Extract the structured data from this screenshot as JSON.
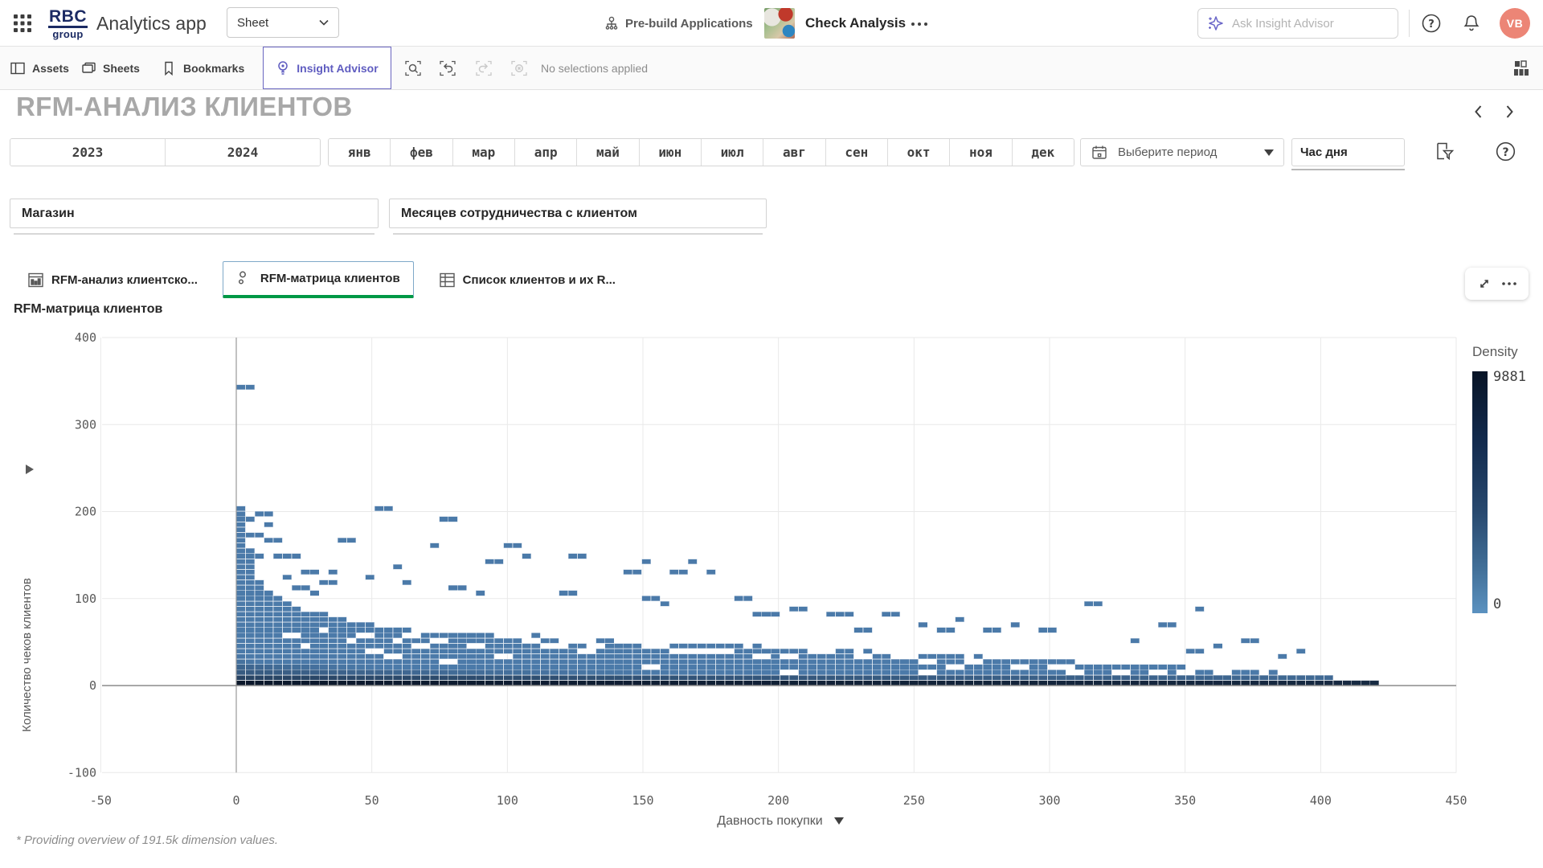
{
  "topbar": {
    "logo_line1": "RBC",
    "logo_line2": "group",
    "app_title": "Analytics app",
    "sheet_selector": "Sheet",
    "prebuild_label": "Pre-build Applications",
    "app_name": "Check Analysis",
    "search_placeholder": "Ask Insight Advisor",
    "avatar_initials": "VB"
  },
  "toolbar": {
    "assets": "Assets",
    "sheets": "Sheets",
    "bookmarks": "Bookmarks",
    "insight_advisor": "Insight Advisor",
    "selections_status": "No selections applied"
  },
  "sheet": {
    "title": "RFM-АНАЛИЗ КЛИЕНТОВ"
  },
  "filters": {
    "years": [
      "2023",
      "2024"
    ],
    "months": [
      "янв",
      "фев",
      "мар",
      "апр",
      "май",
      "июн",
      "июл",
      "авг",
      "сен",
      "окт",
      "ноя",
      "дек"
    ],
    "period_placeholder": "Выберите период",
    "hour_filter": "Час дня",
    "listboxes": [
      "Магазин",
      "Месяцев сотрудничества с клиентом"
    ]
  },
  "tabs": [
    {
      "label": "RFM-анализ клиентско...",
      "icon": "pivot-table-icon",
      "active": false
    },
    {
      "label": "RFM-матрица клиентов",
      "icon": "scatter-icon",
      "active": true
    },
    {
      "label": "Список клиентов и их R...",
      "icon": "table-icon",
      "active": false
    }
  ],
  "chart": {
    "title": "RFM-матрица клиентов",
    "footnote": "* Providing overview of 191.5k dimension values."
  },
  "chart_data": {
    "type": "heatmap",
    "title": "RFM-матрица клиентов",
    "xlabel": "Давность покупки",
    "ylabel": "Количество чеков клиентов",
    "x_ticks": [
      -50,
      0,
      50,
      100,
      150,
      200,
      250,
      300,
      350,
      400,
      450
    ],
    "y_ticks": [
      400,
      300,
      200,
      100,
      0,
      -100
    ],
    "xlim": [
      -50,
      450
    ],
    "ylim": [
      -100,
      400
    ],
    "grid": true,
    "legend": {
      "title": "Density",
      "max": 9881,
      "min": 0,
      "position": "right"
    },
    "colors": {
      "cell_base": "#4b7aa9",
      "cell_dark": "#071122",
      "grid": "#e9e9e9",
      "axis": "#8c8c8c"
    },
    "bin": {
      "x": 3.4,
      "y": 6.07
    },
    "column_tops": [
      205,
      158,
      121,
      109,
      103,
      97,
      91,
      88,
      85,
      82,
      79,
      76,
      74,
      72,
      70,
      68,
      67,
      66,
      64,
      63,
      62,
      61,
      60,
      61,
      59,
      58,
      60,
      58,
      57,
      58,
      57,
      56,
      58,
      56,
      55,
      54,
      56,
      55,
      53,
      54,
      52,
      53,
      51,
      52,
      50,
      51,
      49,
      50,
      48,
      49,
      48,
      47,
      48,
      46,
      47,
      45,
      46,
      44,
      45,
      43,
      44,
      42,
      43,
      41,
      42,
      40,
      41,
      39,
      40,
      38,
      39,
      37,
      38,
      36,
      37,
      35,
      36,
      34,
      35,
      33,
      34,
      32,
      33,
      31,
      32,
      30,
      31,
      29,
      30,
      28,
      29,
      27,
      28,
      26,
      27,
      25,
      26,
      24,
      25,
      23,
      24,
      22,
      23,
      21,
      20,
      21,
      19,
      18,
      19,
      17,
      16,
      15,
      16,
      14,
      13,
      12,
      13,
      11,
      10,
      9,
      8,
      8,
      7,
      7
    ],
    "floaters": [
      [
        0,
        340,
        2
      ],
      [
        7,
        196,
        2
      ],
      [
        0,
        186,
        2
      ],
      [
        10,
        182,
        1
      ],
      [
        0,
        174,
        1
      ],
      [
        3,
        168,
        2
      ],
      [
        10,
        165,
        2
      ],
      [
        0,
        157,
        1
      ],
      [
        3,
        152,
        1
      ],
      [
        7,
        148,
        1
      ],
      [
        12,
        143,
        3
      ],
      [
        24,
        130,
        2
      ],
      [
        17,
        124,
        1
      ],
      [
        31,
        118,
        2
      ],
      [
        20,
        112,
        2
      ],
      [
        27,
        106,
        1
      ],
      [
        37,
        162,
        2
      ],
      [
        34,
        128,
        1
      ],
      [
        51,
        200,
        2
      ],
      [
        48,
        124,
        1
      ],
      [
        58,
        131,
        1
      ],
      [
        61,
        118,
        1
      ],
      [
        75,
        188,
        2
      ],
      [
        72,
        160,
        1
      ],
      [
        78,
        112,
        2
      ],
      [
        92,
        141,
        2
      ],
      [
        99,
        160,
        2
      ],
      [
        88,
        106,
        1
      ],
      [
        105,
        148,
        1
      ],
      [
        122,
        145,
        2
      ],
      [
        119,
        106,
        2
      ],
      [
        143,
        126,
        2
      ],
      [
        150,
        141,
        1
      ],
      [
        160,
        129,
        2
      ],
      [
        167,
        142,
        1
      ],
      [
        173,
        130,
        1
      ],
      [
        150,
        100,
        2
      ],
      [
        156,
        94,
        1
      ],
      [
        185,
        95,
        2
      ],
      [
        190,
        80,
        3
      ],
      [
        205,
        88,
        2
      ],
      [
        218,
        80,
        3
      ],
      [
        228,
        62,
        2
      ],
      [
        238,
        80,
        2
      ],
      [
        250,
        66,
        1
      ],
      [
        258,
        60,
        2
      ],
      [
        265,
        72,
        1
      ],
      [
        275,
        58,
        2
      ],
      [
        285,
        66,
        1
      ],
      [
        296,
        60,
        2
      ],
      [
        313,
        94,
        2
      ],
      [
        330,
        50,
        1
      ],
      [
        340,
        68,
        2
      ],
      [
        352,
        86,
        1
      ],
      [
        350,
        36,
        2
      ],
      [
        362,
        44,
        1
      ],
      [
        372,
        50,
        2
      ],
      [
        385,
        30,
        1
      ],
      [
        392,
        36,
        1
      ]
    ],
    "holes": [
      [
        17,
        56,
        2
      ],
      [
        24,
        44,
        1
      ],
      [
        30,
        62,
        1
      ],
      [
        40,
        50,
        1
      ],
      [
        44,
        56,
        2
      ],
      [
        48,
        37,
        2
      ],
      [
        58,
        50,
        1
      ],
      [
        60,
        56,
        2
      ],
      [
        65,
        44,
        2
      ],
      [
        72,
        50,
        2
      ],
      [
        85,
        44,
        2
      ],
      [
        95,
        56,
        2
      ],
      [
        105,
        50,
        2
      ],
      [
        112,
        44,
        3
      ],
      [
        120,
        50,
        4
      ],
      [
        126,
        37,
        2
      ],
      [
        140,
        50,
        3
      ],
      [
        150,
        44,
        3
      ],
      [
        160,
        37,
        7
      ],
      [
        172,
        50,
        2
      ],
      [
        190,
        31,
        2
      ],
      [
        202,
        31,
        2
      ],
      [
        210,
        37,
        3
      ],
      [
        228,
        31,
        2
      ],
      [
        240,
        31,
        3
      ],
      [
        252,
        25,
        2
      ],
      [
        262,
        19,
        2
      ],
      [
        270,
        25,
        2
      ],
      [
        285,
        19,
        2
      ],
      [
        300,
        19,
        3
      ],
      [
        310,
        25,
        2
      ],
      [
        322,
        13,
        2
      ],
      [
        335,
        13,
        2
      ],
      [
        348,
        13,
        2
      ],
      [
        360,
        13,
        2
      ],
      [
        130,
        44,
        2
      ],
      [
        95,
        31,
        2
      ],
      [
        55,
        31,
        2
      ],
      [
        75,
        25,
        2
      ],
      [
        150,
        19,
        2
      ],
      [
        200,
        13,
        2
      ],
      [
        250,
        13,
        2
      ],
      [
        305,
        13,
        2
      ]
    ]
  }
}
